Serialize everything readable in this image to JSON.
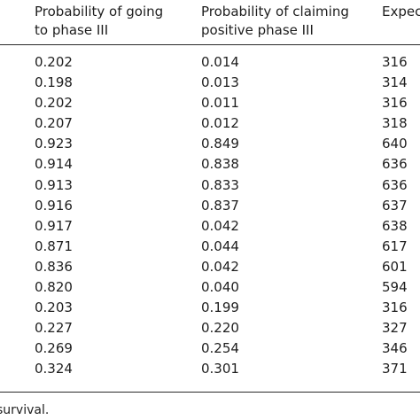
{
  "table": {
    "headers": [
      [
        "Probability of going",
        "to phase III"
      ],
      [
        "Probability of claiming",
        "positive phase III"
      ],
      [
        "Expec",
        ""
      ]
    ],
    "rows": [
      [
        "0.202",
        "0.014",
        "316"
      ],
      [
        "0.198",
        "0.013",
        "314"
      ],
      [
        "0.202",
        "0.011",
        "316"
      ],
      [
        "0.207",
        "0.012",
        "318"
      ],
      [
        "0.923",
        "0.849",
        "640"
      ],
      [
        "0.914",
        "0.838",
        "636"
      ],
      [
        "0.913",
        "0.833",
        "636"
      ],
      [
        "0.916",
        "0.837",
        "637"
      ],
      [
        "0.917",
        "0.042",
        "638"
      ],
      [
        "0.871",
        "0.044",
        "617"
      ],
      [
        "0.836",
        "0.042",
        "601"
      ],
      [
        "0.820",
        "0.040",
        "594"
      ],
      [
        "0.203",
        "0.199",
        "316"
      ],
      [
        "0.227",
        "0.220",
        "327"
      ],
      [
        "0.269",
        "0.254",
        "346"
      ],
      [
        "0.324",
        "0.301",
        "371"
      ]
    ]
  },
  "footnote": "survival."
}
